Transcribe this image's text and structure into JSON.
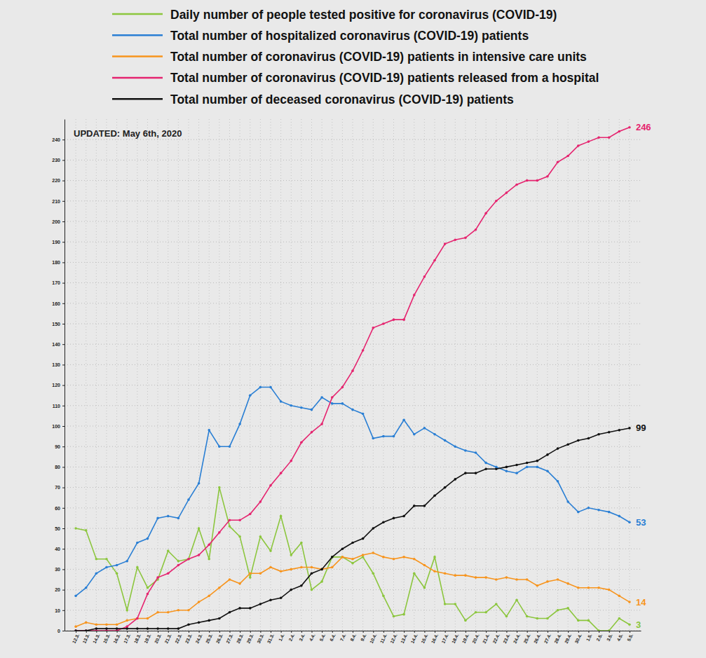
{
  "chart_data": {
    "type": "line",
    "annotations": [
      "UPDATED: May 6th, 2020"
    ],
    "legend": "top",
    "grid": true,
    "marker": "circle",
    "categories": [
      "12.3.",
      "13.3.",
      "14.3.",
      "15.3.",
      "16.3.",
      "17.3.",
      "18.3.",
      "19.3.",
      "20.3.",
      "21.3.",
      "22.3.",
      "23.3.",
      "24.3.",
      "25.3.",
      "26.3.",
      "27.3.",
      "28.3.",
      "29.3.",
      "30.3.",
      "31.3.",
      "1.4.",
      "2.4.",
      "3.4.",
      "4.4.",
      "5.4.",
      "6.4.",
      "7.4.",
      "8.4.",
      "9.4.",
      "10.4.",
      "11.4.",
      "12.4.",
      "13.4.",
      "14.4.",
      "15.4.",
      "16.4.",
      "17.4.",
      "18.4.",
      "19.4.",
      "20.4.",
      "21.4.",
      "22.4.",
      "23.4.",
      "24.4.",
      "25.4.",
      "26.4.",
      "27.4.",
      "28.4.",
      "29.4.",
      "30.4.",
      "1.5.",
      "2.5.",
      "3.5.",
      "4.5.",
      "5.5."
    ],
    "ylim": [
      0,
      250
    ],
    "yticks": [
      0,
      10,
      20,
      30,
      40,
      50,
      60,
      70,
      80,
      90,
      100,
      110,
      120,
      130,
      140,
      150,
      160,
      170,
      180,
      190,
      200,
      210,
      220,
      230,
      240
    ],
    "series": [
      {
        "name": "Daily number of people tested positive for coronavirus (COVID-19)",
        "color": "#8cc63e",
        "values": [
          50,
          49,
          35,
          35,
          28,
          10,
          31,
          21,
          25,
          39,
          34,
          35,
          50,
          35,
          70,
          51,
          46,
          26,
          46,
          39,
          56,
          37,
          43,
          20,
          24,
          36,
          36,
          33,
          36,
          28,
          17,
          7,
          8,
          28,
          21,
          36,
          13,
          13,
          5,
          9,
          9,
          13,
          7,
          15,
          7,
          6,
          6,
          10,
          11,
          5,
          5,
          0,
          0,
          6,
          3
        ],
        "value_labels": [
          null,
          null,
          null,
          null,
          null,
          null,
          null,
          null,
          null,
          null,
          null,
          null,
          null,
          null,
          null,
          null,
          null,
          null,
          null,
          null,
          null,
          null,
          null,
          null,
          null,
          null,
          null,
          null,
          null,
          null,
          null,
          null,
          null,
          null,
          null,
          null,
          null,
          null,
          null,
          null,
          null,
          null,
          null,
          null,
          null,
          null,
          null,
          null,
          null,
          null,
          null,
          null,
          null,
          null,
          "3"
        ]
      },
      {
        "name": "Total number of hospitalized coronavirus (COVID-19) patients",
        "color": "#2a7fd4",
        "values": [
          17,
          21,
          28,
          31,
          32,
          34,
          43,
          45,
          55,
          56,
          55,
          64,
          72,
          98,
          90,
          90,
          101,
          115,
          119,
          119,
          112,
          110,
          109,
          108,
          114,
          111,
          111,
          108,
          106,
          94,
          95,
          95,
          103,
          96,
          99,
          96,
          93,
          90,
          88,
          87,
          82,
          80,
          78,
          77,
          80,
          80,
          78,
          73,
          63,
          58,
          60,
          59,
          58,
          56,
          53
        ],
        "value_labels": [
          null,
          null,
          null,
          null,
          null,
          null,
          null,
          null,
          null,
          null,
          null,
          null,
          null,
          null,
          null,
          null,
          null,
          null,
          null,
          null,
          null,
          null,
          null,
          null,
          null,
          null,
          null,
          null,
          null,
          null,
          null,
          null,
          null,
          null,
          null,
          null,
          null,
          null,
          null,
          null,
          null,
          null,
          null,
          null,
          null,
          null,
          null,
          null,
          null,
          null,
          null,
          null,
          null,
          null,
          "53"
        ]
      },
      {
        "name": "Total number of coronavirus (COVID-19) patients in intensive care units",
        "color": "#f7941d",
        "values": [
          2,
          4,
          3,
          3,
          3,
          5,
          6,
          6,
          9,
          9,
          10,
          10,
          14,
          17,
          21,
          25,
          23,
          28,
          28,
          31,
          29,
          30,
          31,
          31,
          30,
          31,
          36,
          35,
          37,
          38,
          36,
          35,
          36,
          35,
          32,
          29,
          28,
          27,
          27,
          26,
          26,
          25,
          26,
          25,
          25,
          22,
          24,
          25,
          23,
          21,
          21,
          21,
          20,
          17,
          14
        ],
        "value_labels": [
          null,
          null,
          null,
          null,
          null,
          null,
          null,
          null,
          null,
          null,
          null,
          null,
          null,
          null,
          null,
          null,
          null,
          null,
          null,
          null,
          null,
          null,
          null,
          null,
          null,
          null,
          null,
          null,
          null,
          null,
          null,
          null,
          null,
          null,
          null,
          null,
          null,
          null,
          null,
          null,
          null,
          null,
          null,
          null,
          null,
          null,
          null,
          null,
          null,
          null,
          null,
          null,
          null,
          null,
          "14"
        ]
      },
      {
        "name": "Total number of coronavirus (COVID-19) patients released from a hospital",
        "color": "#e5246f",
        "values": [
          0,
          0,
          0,
          0,
          0,
          2,
          6,
          18,
          26,
          28,
          32,
          35,
          37,
          42,
          48,
          54,
          54,
          57,
          63,
          71,
          77,
          83,
          92,
          97,
          101,
          114,
          119,
          127,
          137,
          148,
          150,
          152,
          152,
          164,
          173,
          181,
          189,
          191,
          192,
          196,
          204,
          210,
          214,
          218,
          220,
          220,
          222,
          229,
          232,
          237,
          239,
          241,
          241,
          244,
          246
        ],
        "value_labels": [
          null,
          null,
          null,
          null,
          null,
          null,
          null,
          null,
          null,
          null,
          null,
          null,
          null,
          null,
          null,
          null,
          null,
          null,
          null,
          null,
          null,
          null,
          null,
          null,
          null,
          null,
          null,
          null,
          null,
          null,
          null,
          null,
          null,
          null,
          null,
          null,
          null,
          null,
          null,
          null,
          null,
          null,
          null,
          null,
          null,
          null,
          null,
          null,
          null,
          null,
          null,
          null,
          null,
          null,
          "246"
        ]
      },
      {
        "name": "Total number of deceased coronavirus (COVID-19) patients",
        "color": "#111111",
        "values": [
          0,
          0,
          1,
          1,
          1,
          1,
          1,
          1,
          1,
          1,
          1,
          3,
          4,
          5,
          6,
          9,
          11,
          11,
          13,
          15,
          16,
          20,
          22,
          28,
          30,
          36,
          40,
          43,
          45,
          50,
          53,
          55,
          56,
          61,
          61,
          66,
          70,
          74,
          77,
          77,
          79,
          79,
          80,
          81,
          82,
          83,
          86,
          89,
          91,
          93,
          94,
          96,
          97,
          98,
          99
        ],
        "value_labels": [
          null,
          null,
          null,
          null,
          null,
          null,
          null,
          null,
          null,
          null,
          null,
          null,
          null,
          null,
          null,
          null,
          null,
          null,
          null,
          null,
          null,
          null,
          null,
          null,
          null,
          null,
          null,
          null,
          null,
          null,
          null,
          null,
          null,
          null,
          null,
          null,
          null,
          null,
          null,
          null,
          null,
          null,
          null,
          null,
          null,
          null,
          null,
          null,
          null,
          null,
          null,
          null,
          null,
          null,
          "99"
        ]
      }
    ]
  }
}
